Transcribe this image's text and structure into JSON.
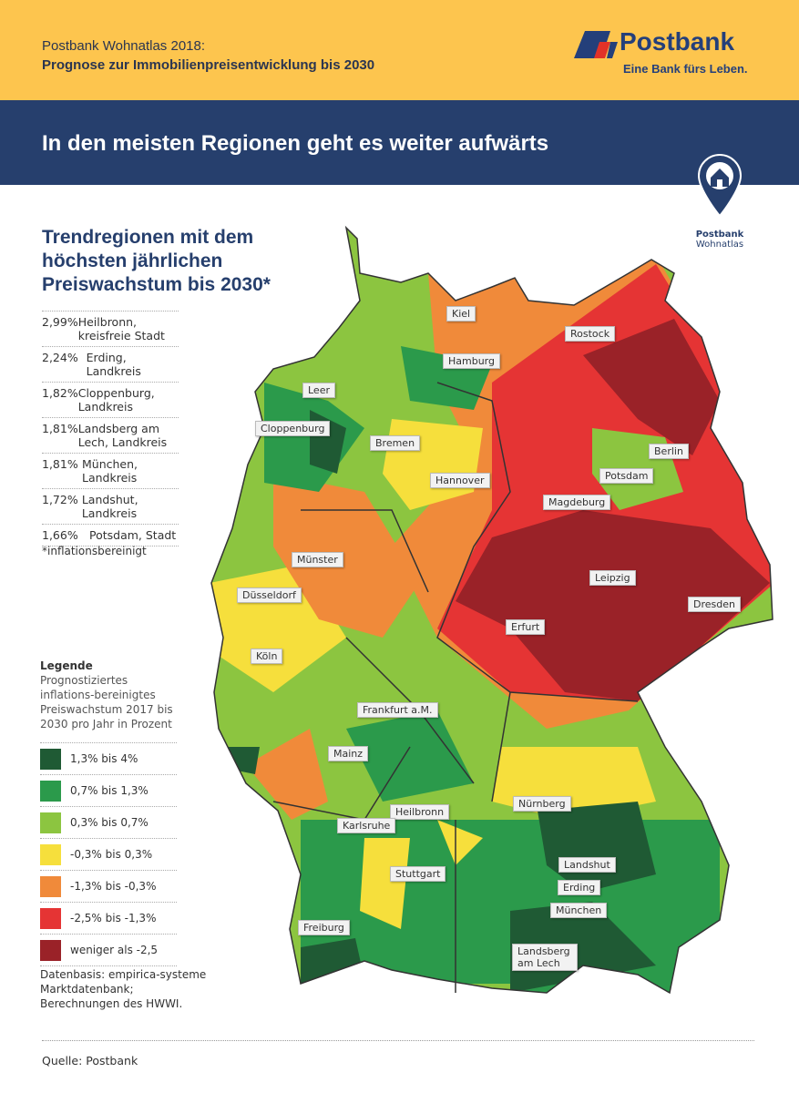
{
  "header": {
    "supertitle": "Postbank Wohnatlas 2018:",
    "subtitle": "Prognose zur Immobilienpreisentwicklung bis 2030",
    "brand": "Postbank",
    "slogan": "Eine Bank fürs Leben."
  },
  "banner": {
    "title": "In den meisten Regionen geht es weiter aufwärts"
  },
  "badge": {
    "line1": "Postbank",
    "line2": "Wohnatlas"
  },
  "ranking": {
    "title": "Trendregionen mit dem höchsten jährlichen Preiswachstum bis 2030*",
    "rows": [
      {
        "value": "2,99%",
        "region": "Heilbronn, kreisfreie Stadt"
      },
      {
        "value": "2,24%",
        "region": "Erding, Landkreis"
      },
      {
        "value": "1,82%",
        "region": "Cloppenburg, Landkreis"
      },
      {
        "value": "1,81%",
        "region": "Landsberg am Lech, Landkreis"
      },
      {
        "value": "1,81%",
        "region": "München, Landkreis"
      },
      {
        "value": "1,72%",
        "region": "Landshut, Landkreis"
      },
      {
        "value": "1,66%",
        "region": "Potsdam, Stadt"
      }
    ],
    "footnote": "*inflationsbereinigt"
  },
  "legend": {
    "title": "Legende",
    "description": "Prognostiziertes inflations-bereinigtes Preiswachstum 2017 bis 2030 pro Jahr in Prozent",
    "items": [
      {
        "label": "1,3% bis 4%",
        "color": "#1f5a34"
      },
      {
        "label": "0,7% bis 1,3%",
        "color": "#2b9a4b"
      },
      {
        "label": "0,3% bis 0,7%",
        "color": "#8cc540"
      },
      {
        "label": "-0,3% bis 0,3%",
        "color": "#f6df3c"
      },
      {
        "label": "-1,3% bis -0,3%",
        "color": "#f08a3a"
      },
      {
        "label": "-2,5% bis -1,3%",
        "color": "#e53434"
      },
      {
        "label": "weniger als -2,5",
        "color": "#9a2228"
      }
    ]
  },
  "source_note": "Datenbasis: empirica-systeme Marktdatenbank; Berechnungen des HWWI.",
  "footer": {
    "source": "Quelle: Postbank"
  },
  "cities": [
    "Kiel",
    "Rostock",
    "Hamburg",
    "Leer",
    "Cloppenburg",
    "Bremen",
    "Berlin",
    "Hannover",
    "Potsdam",
    "Magdeburg",
    "Münster",
    "Düsseldorf",
    "Leipzig",
    "Dresden",
    "Erfurt",
    "Köln",
    "Frankfurt a.M.",
    "Mainz",
    "Heilbronn",
    "Nürnberg",
    "Karlsruhe",
    "Landshut",
    "Stuttgart",
    "Erding",
    "München",
    "Freiburg",
    "Landsberg am Lech"
  ]
}
